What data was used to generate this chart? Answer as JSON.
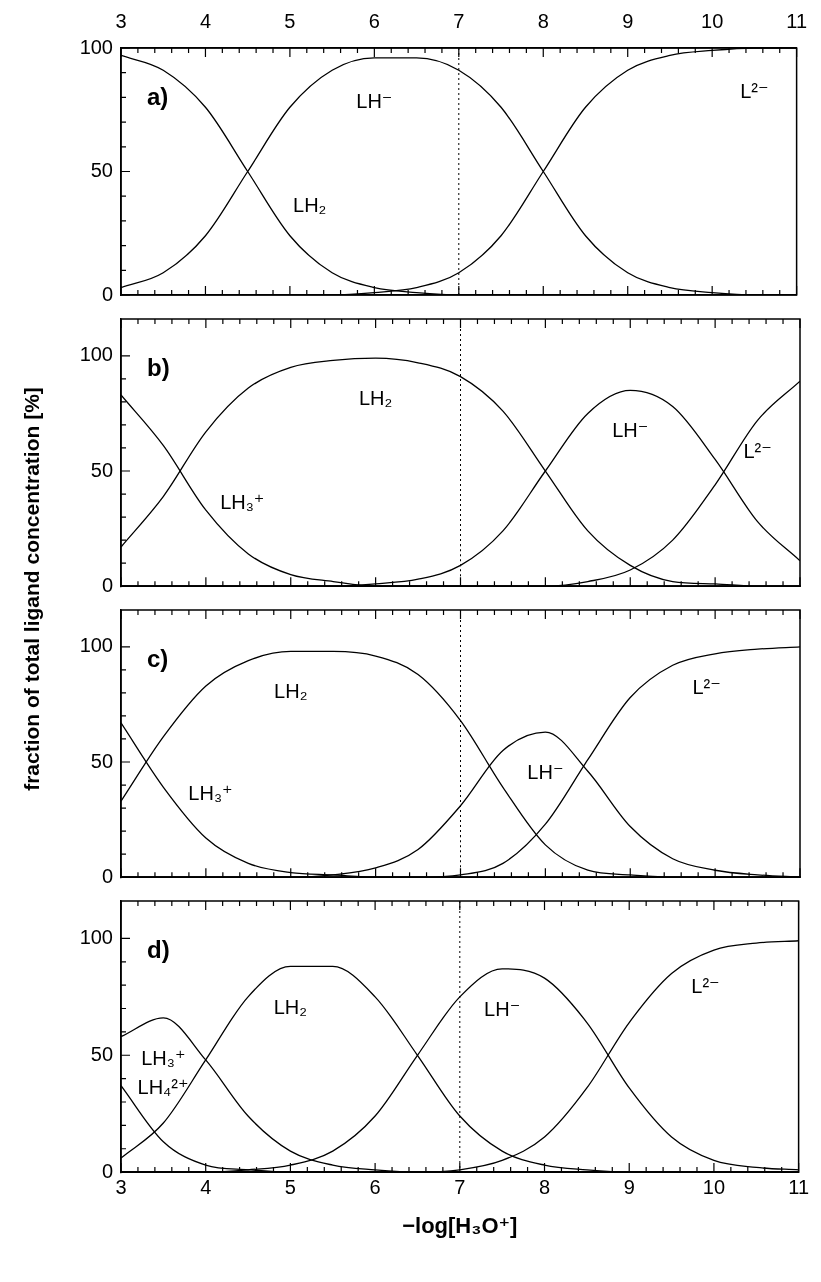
{
  "chart_data": [
    {
      "type": "line",
      "title": "a)",
      "x": [
        3,
        3.5,
        4,
        4.5,
        5,
        5.5,
        6,
        6.5,
        7,
        7.5,
        8,
        8.5,
        9,
        9.5,
        10,
        10.5,
        11
      ],
      "series": [
        {
          "name": "LH₂",
          "color": "#000000",
          "values": [
            97,
            91,
            76,
            50,
            24,
            9,
            3,
            1,
            0,
            0,
            0,
            0,
            0,
            0,
            0,
            0,
            0
          ]
        },
        {
          "name": "LH⁻",
          "color": "#000000",
          "values": [
            3,
            9,
            24,
            50,
            76,
            91,
            96,
            96,
            91,
            76,
            50,
            24,
            9,
            3,
            1,
            0,
            0
          ]
        },
        {
          "name": "L²⁻",
          "color": "#000000",
          "values": [
            0,
            0,
            0,
            0,
            0,
            0,
            1,
            3,
            9,
            24,
            50,
            76,
            91,
            97,
            99,
            100,
            100
          ]
        }
      ],
      "xlim": [
        3,
        11
      ],
      "ylim": [
        0,
        100
      ],
      "xticks": [
        3,
        {
          "value": 3.2,
          "label": null
        },
        {
          "value": 3.4,
          "label": null
        },
        {
          "value": 3.6,
          "label": null
        },
        {
          "value": 3.8,
          "label": null
        },
        4,
        {
          "value": 4.2,
          "label": null
        },
        {
          "value": 4.4,
          "label": null
        },
        {
          "value": 4.6,
          "label": null
        },
        {
          "value": 4.8,
          "label": null
        },
        5,
        {
          "value": 5.2,
          "label": null
        },
        {
          "value": 5.4,
          "label": null
        },
        {
          "value": 5.6,
          "label": null
        },
        {
          "value": 5.8,
          "label": null
        },
        6,
        {
          "value": 6.2,
          "label": null
        },
        {
          "value": 6.4,
          "label": null
        },
        {
          "value": 6.6,
          "label": null
        },
        {
          "value": 6.8,
          "label": null
        },
        7,
        {
          "value": 7.2,
          "label": null
        },
        {
          "value": 7.4,
          "label": null
        },
        {
          "value": 7.6,
          "label": null
        },
        {
          "value": 7.8,
          "label": null
        },
        8,
        {
          "value": 8.2,
          "label": null
        },
        {
          "value": 8.4,
          "label": null
        },
        {
          "value": 8.6,
          "label": null
        },
        {
          "value": 8.8,
          "label": null
        },
        9,
        {
          "value": 9.2,
          "label": null
        },
        {
          "value": 9.4,
          "label": null
        },
        {
          "value": 9.6,
          "label": null
        },
        {
          "value": 9.8,
          "label": null
        },
        10,
        {
          "value": 10.2,
          "label": null
        },
        {
          "value": 10.4,
          "label": null
        },
        {
          "value": 10.6,
          "label": null
        },
        {
          "value": 10.8,
          "label": null
        },
        11
      ],
      "x2lim": [
        3,
        11
      ],
      "x2ticks": [
        3,
        {
          "value": 3.2,
          "label": null
        },
        {
          "value": 3.4,
          "label": null
        },
        {
          "value": 3.6,
          "label": null
        },
        {
          "value": 3.8,
          "label": null
        },
        4,
        {
          "value": 4.2,
          "label": null
        },
        {
          "value": 4.4,
          "label": null
        },
        {
          "value": 4.6,
          "label": null
        },
        {
          "value": 4.8,
          "label": null
        },
        5,
        {
          "value": 5.2,
          "label": null
        },
        {
          "value": 5.4,
          "label": null
        },
        {
          "value": 5.6,
          "label": null
        },
        {
          "value": 5.8,
          "label": null
        },
        6,
        {
          "value": 6.2,
          "label": null
        },
        {
          "value": 6.4,
          "label": null
        },
        {
          "value": 6.6,
          "label": null
        },
        {
          "value": 6.8,
          "label": null
        },
        7,
        {
          "value": 7.2,
          "label": null
        },
        {
          "value": 7.4,
          "label": null
        },
        {
          "value": 7.6,
          "label": null
        },
        {
          "value": 7.8,
          "label": null
        },
        8,
        {
          "value": 8.2,
          "label": null
        },
        {
          "value": 8.4,
          "label": null
        },
        {
          "value": 8.6,
          "label": null
        },
        {
          "value": 8.8,
          "label": null
        },
        9,
        {
          "value": 9.2,
          "label": null
        },
        {
          "value": 9.4,
          "label": null
        },
        {
          "value": 9.6,
          "label": null
        },
        {
          "value": 9.8,
          "label": null
        },
        10,
        {
          "value": 10.2,
          "label": null
        },
        {
          "value": 10.4,
          "label": null
        },
        {
          "value": 10.6,
          "label": null
        },
        {
          "value": 10.8,
          "label": null
        },
        11
      ],
      "yticks": [
        0,
        {
          "value": 10,
          "label": null
        },
        {
          "value": 20,
          "label": null
        },
        {
          "value": 30,
          "label": null
        },
        {
          "value": 40,
          "label": null
        },
        50,
        {
          "value": 60,
          "label": null
        },
        {
          "value": 70,
          "label": null
        },
        {
          "value": 80,
          "label": null
        },
        {
          "value": 90,
          "label": null
        },
        100
      ],
      "ref_lines": [
        {
          "axis": "x",
          "value": 7,
          "line_style": "dotted"
        }
      ],
      "tick_labels": "y"
    },
    {
      "type": "line",
      "title": "b)",
      "ylabel": "fraction of total ligand concentration [%]",
      "x": [
        3,
        3.5,
        4,
        4.5,
        5,
        5.5,
        6,
        6.5,
        7,
        7.5,
        8,
        8.5,
        9,
        9.5,
        10,
        10.5,
        11
      ],
      "series": [
        {
          "name": "LH₃⁺",
          "color": "#000000",
          "values": [
            83,
            61,
            33,
            14,
            5,
            2,
            0,
            0,
            0,
            0,
            0,
            0,
            0,
            0,
            0,
            0,
            0
          ]
        },
        {
          "name": "LH₂",
          "color": "#000000",
          "values": [
            17,
            39,
            67,
            86,
            95,
            98,
            99,
            97,
            91,
            76,
            50,
            24,
            9,
            2,
            1,
            0,
            0
          ]
        },
        {
          "name": "LH⁻",
          "color": "#000000",
          "values": [
            0,
            0,
            0,
            0,
            0,
            0,
            1,
            3,
            9,
            24,
            50,
            75,
            85,
            78,
            55,
            28,
            11
          ]
        },
        {
          "name": "L²⁻",
          "color": "#000000",
          "values": [
            0,
            0,
            0,
            0,
            0,
            0,
            0,
            0,
            0,
            0,
            0,
            2,
            7,
            20,
            44,
            72,
            89
          ]
        }
      ],
      "xlim": [
        3,
        11
      ],
      "ylim": [
        0,
        116
      ],
      "xticks": [
        3,
        {
          "value": 3.2,
          "label": null
        },
        {
          "value": 3.4,
          "label": null
        },
        {
          "value": 3.6,
          "label": null
        },
        {
          "value": 3.8,
          "label": null
        },
        4,
        {
          "value": 4.2,
          "label": null
        },
        {
          "value": 4.4,
          "label": null
        },
        {
          "value": 4.6,
          "label": null
        },
        {
          "value": 4.8,
          "label": null
        },
        5,
        {
          "value": 5.2,
          "label": null
        },
        {
          "value": 5.4,
          "label": null
        },
        {
          "value": 5.6,
          "label": null
        },
        {
          "value": 5.8,
          "label": null
        },
        6,
        {
          "value": 6.2,
          "label": null
        },
        {
          "value": 6.4,
          "label": null
        },
        {
          "value": 6.6,
          "label": null
        },
        {
          "value": 6.8,
          "label": null
        },
        7,
        {
          "value": 7.2,
          "label": null
        },
        {
          "value": 7.4,
          "label": null
        },
        {
          "value": 7.6,
          "label": null
        },
        {
          "value": 7.8,
          "label": null
        },
        8,
        {
          "value": 8.2,
          "label": null
        },
        {
          "value": 8.4,
          "label": null
        },
        {
          "value": 8.6,
          "label": null
        },
        {
          "value": 8.8,
          "label": null
        },
        9,
        {
          "value": 9.2,
          "label": null
        },
        {
          "value": 9.4,
          "label": null
        },
        {
          "value": 9.6,
          "label": null
        },
        {
          "value": 9.8,
          "label": null
        },
        10,
        {
          "value": 10.2,
          "label": null
        },
        {
          "value": 10.4,
          "label": null
        },
        {
          "value": 10.6,
          "label": null
        },
        {
          "value": 10.8,
          "label": null
        },
        11
      ],
      "yticks": [
        0,
        {
          "value": 10,
          "label": null
        },
        {
          "value": 20,
          "label": null
        },
        {
          "value": 30,
          "label": null
        },
        {
          "value": 40,
          "label": null
        },
        50,
        {
          "value": 60,
          "label": null
        },
        {
          "value": 70,
          "label": null
        },
        {
          "value": 80,
          "label": null
        },
        {
          "value": 90,
          "label": null
        },
        100
      ],
      "ref_lines": [
        {
          "axis": "x",
          "value": 7,
          "line_style": "dotted"
        }
      ],
      "tick_labels": "y"
    },
    {
      "type": "line",
      "title": "c)",
      "x": [
        3,
        3.5,
        4,
        4.5,
        5,
        5.5,
        6,
        6.5,
        7,
        7.5,
        8,
        8.5,
        9,
        9.5,
        10,
        10.5,
        11
      ],
      "series": [
        {
          "name": "LH₃⁺",
          "color": "#000000",
          "values": [
            67,
            39,
            17,
            6,
            2,
            1,
            0,
            0,
            0,
            0,
            0,
            0,
            0,
            0,
            0,
            0,
            0
          ]
        },
        {
          "name": "LH₂",
          "color": "#000000",
          "values": [
            33,
            61,
            83,
            94,
            98,
            98,
            96,
            88,
            68,
            39,
            14,
            3,
            1,
            0,
            0,
            0,
            0
          ]
        },
        {
          "name": "LH⁻",
          "color": "#000000",
          "values": [
            0,
            0,
            0,
            0,
            0,
            1,
            4,
            12,
            31,
            55,
            63,
            46,
            22,
            8,
            3,
            1,
            0
          ]
        },
        {
          "name": "L²⁻",
          "color": "#000000",
          "values": [
            0,
            0,
            0,
            0,
            0,
            0,
            0,
            0,
            1,
            6,
            23,
            51,
            78,
            92,
            97,
            99,
            100
          ]
        }
      ],
      "xlim": [
        3,
        11
      ],
      "ylim": [
        0,
        116
      ],
      "xticks": [
        3,
        {
          "value": 3.2,
          "label": null
        },
        {
          "value": 3.4,
          "label": null
        },
        {
          "value": 3.6,
          "label": null
        },
        {
          "value": 3.8,
          "label": null
        },
        4,
        {
          "value": 4.2,
          "label": null
        },
        {
          "value": 4.4,
          "label": null
        },
        {
          "value": 4.6,
          "label": null
        },
        {
          "value": 4.8,
          "label": null
        },
        5,
        {
          "value": 5.2,
          "label": null
        },
        {
          "value": 5.4,
          "label": null
        },
        {
          "value": 5.6,
          "label": null
        },
        {
          "value": 5.8,
          "label": null
        },
        6,
        {
          "value": 6.2,
          "label": null
        },
        {
          "value": 6.4,
          "label": null
        },
        {
          "value": 6.6,
          "label": null
        },
        {
          "value": 6.8,
          "label": null
        },
        7,
        {
          "value": 7.2,
          "label": null
        },
        {
          "value": 7.4,
          "label": null
        },
        {
          "value": 7.6,
          "label": null
        },
        {
          "value": 7.8,
          "label": null
        },
        8,
        {
          "value": 8.2,
          "label": null
        },
        {
          "value": 8.4,
          "label": null
        },
        {
          "value": 8.6,
          "label": null
        },
        {
          "value": 8.8,
          "label": null
        },
        9,
        {
          "value": 9.2,
          "label": null
        },
        {
          "value": 9.4,
          "label": null
        },
        {
          "value": 9.6,
          "label": null
        },
        {
          "value": 9.8,
          "label": null
        },
        10,
        {
          "value": 10.2,
          "label": null
        },
        {
          "value": 10.4,
          "label": null
        },
        {
          "value": 10.6,
          "label": null
        },
        {
          "value": 10.8,
          "label": null
        },
        11
      ],
      "yticks": [
        0,
        {
          "value": 10,
          "label": null
        },
        {
          "value": 20,
          "label": null
        },
        {
          "value": 30,
          "label": null
        },
        {
          "value": 40,
          "label": null
        },
        50,
        {
          "value": 60,
          "label": null
        },
        {
          "value": 70,
          "label": null
        },
        {
          "value": 80,
          "label": null
        },
        {
          "value": 90,
          "label": null
        },
        100
      ],
      "ref_lines": [
        {
          "axis": "x",
          "value": 7,
          "line_style": "dotted"
        }
      ],
      "tick_labels": "y"
    },
    {
      "type": "line",
      "title": "d)",
      "xlabel": "−log[H₃O⁺]",
      "x": [
        3,
        3.5,
        4,
        4.5,
        5,
        5.5,
        6,
        6.5,
        7,
        7.5,
        8,
        8.5,
        9,
        9.5,
        10,
        10.5,
        11
      ],
      "series": [
        {
          "name": "LH₄²⁺",
          "color": "#000000",
          "values": [
            37,
            13,
            3,
            1,
            0,
            0,
            0,
            0,
            0,
            0,
            0,
            0,
            0,
            0,
            0,
            0,
            0
          ]
        },
        {
          "name": "LH₃⁺",
          "color": "#000000",
          "values": [
            58,
            66,
            48,
            24,
            9,
            3,
            1,
            0,
            0,
            0,
            0,
            0,
            0,
            0,
            0,
            0,
            0
          ]
        },
        {
          "name": "LH₂",
          "color": "#000000",
          "values": [
            6,
            21,
            48,
            75,
            88,
            88,
            75,
            50,
            24,
            9,
            3,
            1,
            0,
            0,
            0,
            0,
            0
          ]
        },
        {
          "name": "LH⁻",
          "color": "#000000",
          "values": [
            0,
            0,
            0,
            1,
            3,
            9,
            24,
            50,
            75,
            87,
            83,
            64,
            36,
            15,
            5,
            2,
            1
          ]
        },
        {
          "name": "L²⁻",
          "color": "#000000",
          "values": [
            0,
            0,
            0,
            0,
            0,
            0,
            0,
            0,
            1,
            5,
            15,
            36,
            64,
            85,
            95,
            98,
            99
          ]
        }
      ],
      "xlim": [
        3,
        11
      ],
      "ylim": [
        0,
        116
      ],
      "xticks": [
        3,
        {
          "value": 3.2,
          "label": null
        },
        {
          "value": 3.4,
          "label": null
        },
        {
          "value": 3.6,
          "label": null
        },
        {
          "value": 3.8,
          "label": null
        },
        4,
        {
          "value": 4.2,
          "label": null
        },
        {
          "value": 4.4,
          "label": null
        },
        {
          "value": 4.6,
          "label": null
        },
        {
          "value": 4.8,
          "label": null
        },
        5,
        {
          "value": 5.2,
          "label": null
        },
        {
          "value": 5.4,
          "label": null
        },
        {
          "value": 5.6,
          "label": null
        },
        {
          "value": 5.8,
          "label": null
        },
        6,
        {
          "value": 6.2,
          "label": null
        },
        {
          "value": 6.4,
          "label": null
        },
        {
          "value": 6.6,
          "label": null
        },
        {
          "value": 6.8,
          "label": null
        },
        7,
        {
          "value": 7.2,
          "label": null
        },
        {
          "value": 7.4,
          "label": null
        },
        {
          "value": 7.6,
          "label": null
        },
        {
          "value": 7.8,
          "label": null
        },
        8,
        {
          "value": 8.2,
          "label": null
        },
        {
          "value": 8.4,
          "label": null
        },
        {
          "value": 8.6,
          "label": null
        },
        {
          "value": 8.8,
          "label": null
        },
        9,
        {
          "value": 9.2,
          "label": null
        },
        {
          "value": 9.4,
          "label": null
        },
        {
          "value": 9.6,
          "label": null
        },
        {
          "value": 9.8,
          "label": null
        },
        10,
        {
          "value": 10.2,
          "label": null
        },
        {
          "value": 10.4,
          "label": null
        },
        {
          "value": 10.6,
          "label": null
        },
        {
          "value": 10.8,
          "label": null
        },
        11
      ],
      "yticks": [
        0,
        {
          "value": 10,
          "label": null
        },
        {
          "value": 20,
          "label": null
        },
        {
          "value": 30,
          "label": null
        },
        {
          "value": 40,
          "label": null
        },
        50,
        {
          "value": 60,
          "label": null
        },
        {
          "value": 70,
          "label": null
        },
        {
          "value": 80,
          "label": null
        },
        {
          "value": 90,
          "label": null
        },
        100
      ],
      "ref_lines": [
        {
          "axis": "x",
          "value": 7,
          "line_style": "dotted"
        }
      ]
    }
  ]
}
